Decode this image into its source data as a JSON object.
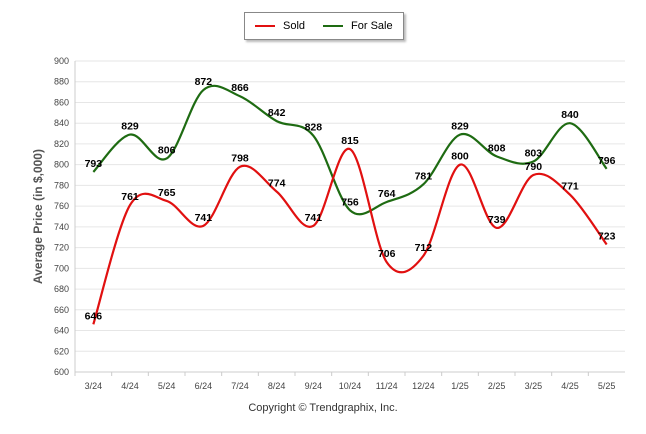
{
  "legend": {
    "sold_label": "Sold",
    "forsale_label": "For Sale"
  },
  "copyright": "Copyright © Trendgraphix, Inc.",
  "colors": {
    "sold": "#e11010",
    "for_sale": "#1e6b12",
    "grid": "#e6e6e6"
  },
  "chart_data": {
    "type": "line",
    "categories": [
      "3/24",
      "4/24",
      "5/24",
      "6/24",
      "7/24",
      "8/24",
      "9/24",
      "10/24",
      "11/24",
      "12/24",
      "1/25",
      "2/25",
      "3/25",
      "4/25",
      "5/25"
    ],
    "series": [
      {
        "name": "Sold",
        "values": [
          646,
          761,
          765,
          741,
          798,
          774,
          741,
          815,
          706,
          712,
          800,
          739,
          790,
          771,
          723
        ]
      },
      {
        "name": "For Sale",
        "values": [
          793,
          829,
          806,
          872,
          866,
          842,
          828,
          756,
          764,
          781,
          829,
          808,
          803,
          840,
          796
        ]
      }
    ],
    "ylabel": "Average Price (in $,000)",
    "xlabel": "",
    "ylim": [
      600,
      900
    ],
    "ytick_step": 20,
    "grid": true,
    "legend_position": "top-center"
  }
}
